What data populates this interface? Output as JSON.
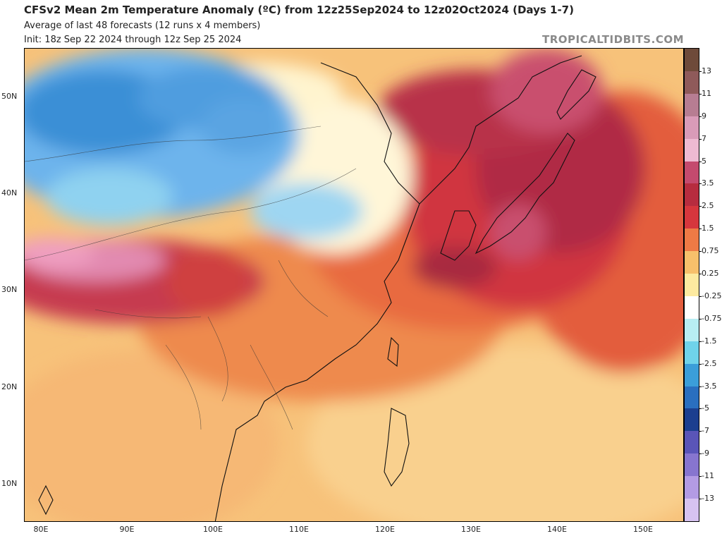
{
  "header": {
    "title": "CFSv2 Mean 2m Temperature Anomaly (ºC) from 12z25Sep2024 to 12z02Oct2024 (Days 1-7)",
    "subtitle": "Average of last 48 forecasts (12 runs x 4 members)",
    "init": "Init: 18z Sep 22 2024 through 12z Sep 25 2024",
    "brand": "TROPICALTIDBITS.COM"
  },
  "map": {
    "region": "East Asia",
    "projection": "lat-lon",
    "lat_range": [
      6,
      55
    ],
    "lon_range": [
      78,
      155
    ],
    "lat_labels": [
      "50N",
      "40N",
      "30N",
      "20N",
      "10N"
    ],
    "lon_labels": [
      "80E",
      "90E",
      "100E",
      "110E",
      "120E",
      "130E",
      "140E",
      "150E"
    ],
    "features": {
      "cold_anomaly_region": "Mongolia / northern China (blue shades)",
      "strong_warm_region": "Japan / Korea / Sea of Japan (dark red)",
      "warm_region": "Tibetan Plateau (pink / magenta)"
    }
  },
  "colorbar": {
    "labels": [
      "13",
      "11",
      "9",
      "7",
      "5",
      "3.5",
      "2.5",
      "1.5",
      "0.75",
      "0.25",
      "-0.25",
      "-0.75",
      "-1.5",
      "-2.5",
      "-3.5",
      "-5",
      "-7",
      "-9",
      "-11",
      "-13"
    ],
    "colors": [
      "#6e4a3a",
      "#8f5a5a",
      "#b77d92",
      "#d99bb8",
      "#eebad2",
      "#c44a6e",
      "#b72c3f",
      "#d6363d",
      "#ee7a45",
      "#f7c06b",
      "#fdeaa0",
      "#ffffff",
      "#b8eef3",
      "#6fd3ea",
      "#3b9ed9",
      "#2a6fbf",
      "#1c3f8f",
      "#5a55b8",
      "#8775cf",
      "#b39be4",
      "#d7c3f0"
    ],
    "unit": "°C"
  }
}
